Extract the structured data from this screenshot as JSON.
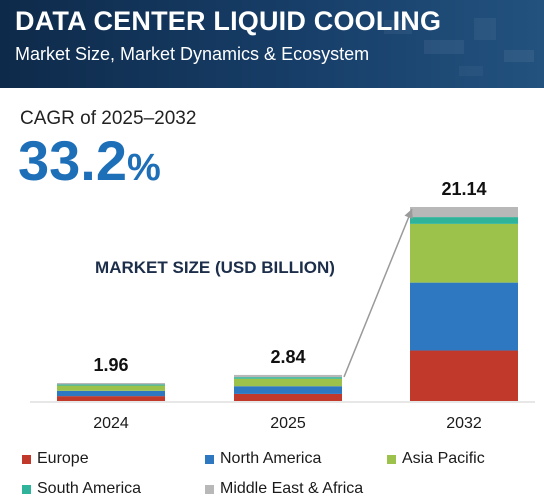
{
  "header": {
    "title": "DATA CENTER LIQUID COOLING",
    "subtitle": "Market Size, Market Dynamics & Ecosystem"
  },
  "cagr": {
    "label": "CAGR of 2025–2032",
    "value": "33.2",
    "unit": "%"
  },
  "chart_data": {
    "type": "bar",
    "stacked": true,
    "title": "MARKET SIZE (USD BILLION)",
    "categories": [
      "2024",
      "2025",
      "2032"
    ],
    "totals": [
      1.96,
      2.84,
      21.14
    ],
    "total_labels": [
      "1.96",
      "2.84",
      "21.14"
    ],
    "series": [
      {
        "name": "Europe",
        "color": "#c0392b",
        "values": [
          0.53,
          0.77,
          5.5
        ]
      },
      {
        "name": "North America",
        "color": "#2e78c2",
        "values": [
          0.58,
          0.84,
          7.4
        ]
      },
      {
        "name": "Asia Pacific",
        "color": "#9dc24b",
        "values": [
          0.57,
          0.82,
          6.4
        ]
      },
      {
        "name": "South America",
        "color": "#2fb39a",
        "values": [
          0.12,
          0.17,
          0.74
        ]
      },
      {
        "name": "Middle East & Africa",
        "color": "#b8b8b8",
        "values": [
          0.16,
          0.24,
          1.1
        ]
      }
    ],
    "ylim": [
      0,
      21.14
    ],
    "annotation": "growth arrow from 2025 to 2032",
    "grid": false,
    "legend": "bottom"
  }
}
